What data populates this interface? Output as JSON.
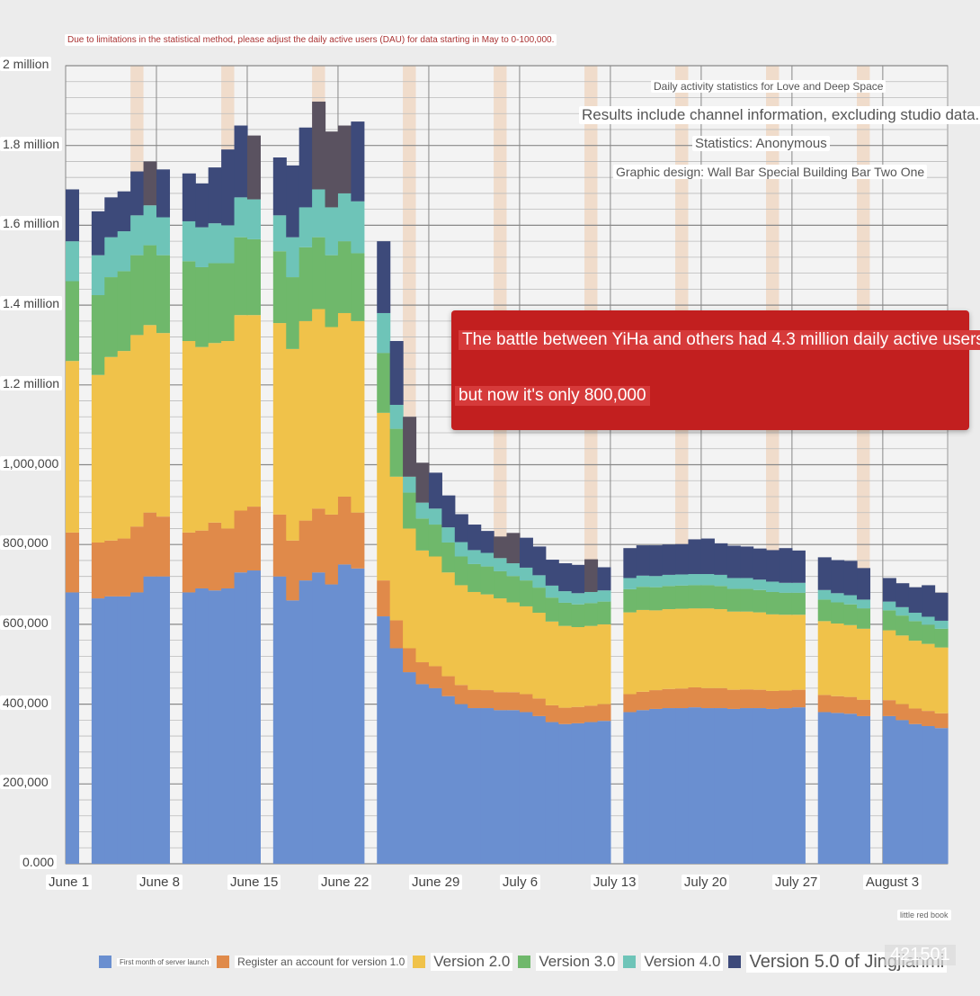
{
  "note": "Due to limitations in the statistical method, please adjust the daily active users (DAU) for data starting in May to 0-100,000.",
  "titles": {
    "title": "Daily activity statistics for Love and Deep Space",
    "subtitle": "Results include channel information, excluding studio data.",
    "stats": "Statistics: Anonymous",
    "design": "Graphic design: Wall Bar Special Building Bar Two One"
  },
  "callout": {
    "line1": "The battle between YiHa and others had 4.3 million daily active users,",
    "line2": "but now it's only 800,000"
  },
  "watermark": {
    "source": "little red book",
    "id": "421501"
  },
  "colors": {
    "Version 5.0 of Jingjianmi": "#3d4a7a",
    "Version 4.0": "#6ec4b8",
    "Version 3.0": "#6fb86b",
    "Version 2.0": "#f0c24a",
    "Register an account for version 1.0": "#e08a4a",
    "First month of server launch": "#6a8fd0",
    "dark_overlay": "#5a5260"
  },
  "chart_data": {
    "type": "bar",
    "stacked": true,
    "title": "Daily activity statistics for Love and Deep Space",
    "ylim": [
      0,
      2000000
    ],
    "yticks": [
      {
        "v": 0,
        "label": "0.000"
      },
      {
        "v": 200000,
        "label": "200,000"
      },
      {
        "v": 400000,
        "label": "400,000"
      },
      {
        "v": 600000,
        "label": "600,000"
      },
      {
        "v": 800000,
        "label": "800,000"
      },
      {
        "v": 1000000,
        "label": "1,000,000"
      },
      {
        "v": 1200000,
        "label": "1.2 million"
      },
      {
        "v": 1400000,
        "label": "1.4 million"
      },
      {
        "v": 1600000,
        "label": "1.6 million"
      },
      {
        "v": 1800000,
        "label": "1.8 million"
      },
      {
        "v": 2000000,
        "label": "2 million"
      }
    ],
    "xticks": [
      {
        "day": 1,
        "label": "June 1"
      },
      {
        "day": 8,
        "label": "June 8"
      },
      {
        "day": 15,
        "label": "June 15"
      },
      {
        "day": 22,
        "label": "June 22"
      },
      {
        "day": 29,
        "label": "June 29"
      },
      {
        "day": 36,
        "label": "July 6"
      },
      {
        "day": 43,
        "label": "July 13"
      },
      {
        "day": 50,
        "label": "July 20"
      },
      {
        "day": 57,
        "label": "July 27"
      },
      {
        "day": 64,
        "label": "August 3"
      }
    ],
    "gap_days": [
      2,
      9,
      16,
      23,
      43
    ],
    "categories": [
      1,
      2,
      3,
      4,
      5,
      6,
      7,
      8,
      9,
      10,
      11,
      12,
      13,
      14,
      15,
      16,
      17,
      18,
      19,
      20,
      21,
      22,
      23,
      24,
      25,
      26,
      27,
      28,
      29,
      30,
      31,
      32,
      33,
      34,
      35,
      36,
      37,
      38,
      39,
      40,
      41,
      42,
      43,
      44,
      45,
      46,
      47,
      48,
      49,
      50,
      51,
      52,
      53,
      54,
      55,
      56,
      57,
      58,
      59,
      60,
      61,
      62,
      63,
      64,
      65,
      66,
      67,
      68
    ],
    "series": [
      {
        "name": "First month of server launch",
        "values": [
          680000,
          0,
          665000,
          670000,
          670000,
          680000,
          720000,
          720000,
          0,
          680000,
          690000,
          685000,
          690000,
          730000,
          735000,
          0,
          720000,
          660000,
          710000,
          730000,
          700000,
          750000,
          740000,
          0,
          620000,
          540000,
          480000,
          450000,
          440000,
          420000,
          400000,
          390000,
          390000,
          385000,
          385000,
          380000,
          370000,
          355000,
          350000,
          352000,
          355000,
          358000,
          0,
          380000,
          385000,
          388000,
          390000,
          390000,
          392000,
          390000,
          390000,
          388000,
          390000,
          390000,
          388000,
          390000,
          392000,
          0,
          380000,
          378000,
          376000,
          370000,
          0,
          370000,
          360000,
          350000,
          345000,
          340000
        ]
      },
      {
        "name": "Register an account for version 1.0",
        "values": [
          150000,
          0,
          140000,
          140000,
          145000,
          165000,
          160000,
          150000,
          0,
          150000,
          145000,
          170000,
          150000,
          155000,
          160000,
          0,
          155000,
          150000,
          150000,
          160000,
          175000,
          170000,
          140000,
          0,
          90000,
          70000,
          60000,
          55000,
          55000,
          50000,
          48000,
          46000,
          45000,
          45000,
          45000,
          45000,
          44000,
          42000,
          41000,
          41000,
          41000,
          42000,
          0,
          45000,
          46000,
          47000,
          48000,
          49000,
          50000,
          50000,
          50000,
          48000,
          47000,
          46000,
          45000,
          44000,
          44000,
          0,
          43000,
          42000,
          42000,
          41000,
          0,
          40000,
          40000,
          39000,
          38000,
          37000
        ]
      },
      {
        "name": "Version 2.0",
        "values": [
          430000,
          0,
          420000,
          460000,
          470000,
          480000,
          470000,
          460000,
          0,
          480000,
          460000,
          450000,
          470000,
          490000,
          480000,
          0,
          480000,
          480000,
          500000,
          500000,
          470000,
          460000,
          480000,
          0,
          420000,
          360000,
          300000,
          280000,
          275000,
          260000,
          250000,
          245000,
          240000,
          235000,
          225000,
          220000,
          215000,
          210000,
          205000,
          200000,
          200000,
          200000,
          0,
          205000,
          205000,
          200000,
          200000,
          200000,
          198000,
          200000,
          198000,
          196000,
          195000,
          194000,
          192000,
          190000,
          188000,
          0,
          185000,
          182000,
          180000,
          178000,
          0,
          175000,
          172000,
          170000,
          168000,
          165000
        ]
      },
      {
        "name": "Version 3.0",
        "values": [
          200000,
          0,
          200000,
          200000,
          200000,
          200000,
          200000,
          195000,
          0,
          200000,
          200000,
          200000,
          195000,
          195000,
          190000,
          0,
          180000,
          180000,
          185000,
          180000,
          180000,
          180000,
          170000,
          0,
          150000,
          120000,
          90000,
          80000,
          80000,
          75000,
          72000,
          70000,
          70000,
          68000,
          66000,
          65000,
          63000,
          60000,
          58000,
          57000,
          57000,
          57000,
          0,
          58000,
          58000,
          58000,
          58000,
          58000,
          58000,
          58000,
          58000,
          57000,
          57000,
          56000,
          56000,
          55000,
          55000,
          0,
          54000,
          53000,
          52000,
          51000,
          0,
          50000,
          50000,
          49000,
          48000,
          47000
        ]
      },
      {
        "name": "Version 4.0",
        "values": [
          100000,
          0,
          100000,
          100000,
          100000,
          100000,
          100000,
          95000,
          0,
          100000,
          100000,
          100000,
          95000,
          100000,
          100000,
          0,
          90000,
          100000,
          100000,
          120000,
          120000,
          120000,
          130000,
          0,
          100000,
          60000,
          40000,
          40000,
          40000,
          38000,
          36000,
          35000,
          34000,
          33000,
          32000,
          32000,
          31000,
          30000,
          29000,
          28000,
          28000,
          28000,
          0,
          28000,
          28000,
          28000,
          28000,
          28000,
          28000,
          28000,
          28000,
          27000,
          27000,
          26000,
          26000,
          25000,
          25000,
          0,
          24000,
          23000,
          23000,
          22000,
          0,
          22000,
          21000,
          21000,
          20000,
          20000
        ]
      },
      {
        "name": "Version 5.0 of Jingjianmi",
        "values": [
          130000,
          0,
          110000,
          100000,
          100000,
          110000,
          110000,
          120000,
          0,
          120000,
          110000,
          140000,
          190000,
          180000,
          160000,
          0,
          145000,
          180000,
          200000,
          220000,
          190000,
          170000,
          200000,
          0,
          180000,
          160000,
          150000,
          100000,
          90000,
          80000,
          70000,
          64000,
          55000,
          54000,
          76000,
          75000,
          72000,
          65000,
          70000,
          71000,
          82000,
          58000,
          0,
          75000,
          76000,
          77000,
          76000,
          76000,
          87000,
          89000,
          79000,
          81000,
          79000,
          78000,
          79000,
          87000,
          81000,
          0,
          82000,
          83000,
          86000,
          79000,
          0,
          59000,
          60000,
          64000,
          79000,
          70000
        ]
      }
    ],
    "dark_overlay_days": [
      7,
      15,
      20,
      21,
      22,
      27,
      28,
      34,
      35,
      41
    ],
    "legend": [
      "First month of server launch",
      "Register an account for version 1.0",
      "Version 2.0",
      "Version 3.0",
      "Version 4.0",
      "Version 5.0 of Jingjianmi"
    ]
  }
}
